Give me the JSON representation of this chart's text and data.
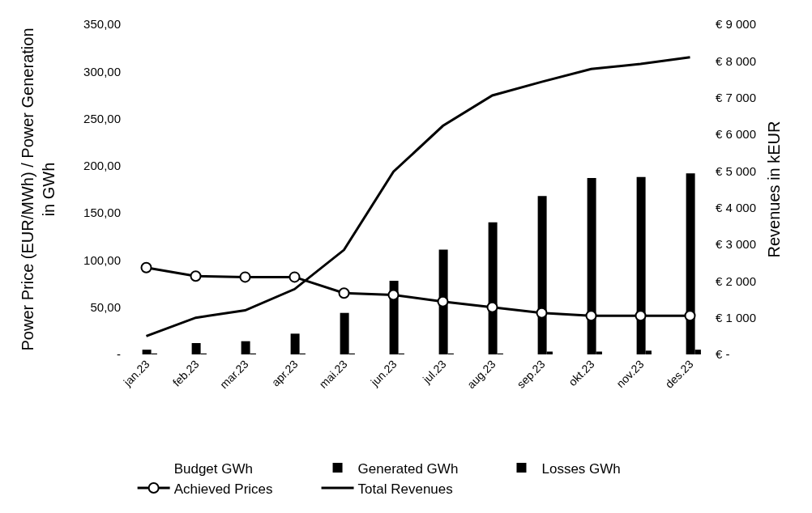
{
  "chart_data": {
    "type": "bar",
    "ylabel": "Power Price (EUR/MWh) / Power Generation in GWh",
    "y2label": "Revenues in kEUR",
    "categories": [
      "jan.23",
      "feb.23",
      "mar.23",
      "apr.23",
      "mai.23",
      "jun.23",
      "jul.23",
      "aug.23",
      "sep.23",
      "okt.23",
      "nov.23",
      "des.23"
    ],
    "series": [
      {
        "name": "Budget GWh",
        "values": [
          null,
          null,
          null,
          null,
          null,
          null,
          null,
          null,
          null,
          null,
          null,
          null
        ]
      },
      {
        "name": "Generated GWh",
        "color": "#000000",
        "values": [
          5,
          12,
          14,
          22,
          44,
          78,
          111,
          140,
          168,
          187,
          188,
          192
        ]
      },
      {
        "name": "Losses GWh",
        "color": "#000000",
        "values": [
          1,
          1,
          1,
          1,
          1,
          1,
          1,
          1,
          3,
          3,
          4,
          5
        ]
      },
      {
        "name": "Achieved Prices",
        "type": "line",
        "color": "#000000",
        "marker": "circle",
        "values": [
          92,
          83,
          82,
          82,
          65,
          63,
          56,
          50,
          44,
          41,
          41,
          41
        ]
      },
      {
        "name": "Total Revenues",
        "type": "line",
        "color": "#000000",
        "axis": "y2",
        "values": [
          500,
          1000,
          1200,
          1780,
          2850,
          4980,
          6230,
          7060,
          7430,
          7780,
          7920,
          8100
        ]
      }
    ],
    "ylim": [
      0,
      350
    ],
    "yticks": [
      {
        "value": 0,
        "label": "-"
      },
      {
        "value": 50,
        "label": "50,00"
      },
      {
        "value": 100,
        "label": "100,00"
      },
      {
        "value": 150,
        "label": "150,00"
      },
      {
        "value": 200,
        "label": "200,00"
      },
      {
        "value": 250,
        "label": "250,00"
      },
      {
        "value": 300,
        "label": "300,00"
      },
      {
        "value": 350,
        "label": "350,00"
      }
    ],
    "y2lim": [
      0,
      9000
    ],
    "y2ticks": [
      {
        "value": 0,
        "label": "€ -"
      },
      {
        "value": 1000,
        "label": "€ 1 000"
      },
      {
        "value": 2000,
        "label": "€ 2 000"
      },
      {
        "value": 3000,
        "label": "€ 3 000"
      },
      {
        "value": 4000,
        "label": "€ 4 000"
      },
      {
        "value": 5000,
        "label": "€ 5 000"
      },
      {
        "value": 6000,
        "label": "€ 6 000"
      },
      {
        "value": 7000,
        "label": "€ 7 000"
      },
      {
        "value": 8000,
        "label": "€ 8 000"
      },
      {
        "value": 9000,
        "label": "€ 9 000"
      }
    ],
    "grid": false,
    "legend": "bottom"
  }
}
